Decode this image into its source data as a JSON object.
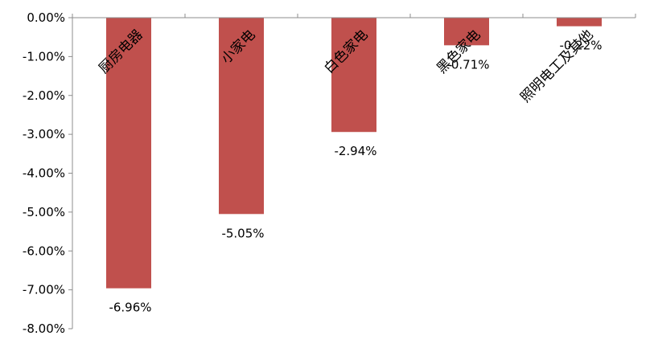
{
  "chart_data": {
    "type": "bar",
    "categories": [
      "厨房电器",
      "小家电",
      "白色家电",
      "黑色家电",
      "照明电工及其他"
    ],
    "values": [
      -6.96,
      -5.05,
      -2.94,
      -0.71,
      -0.22
    ],
    "data_labels": [
      "-6.96%",
      "-5.05%",
      "-2.94%",
      "-0.71%",
      "-0.22%"
    ],
    "y_ticks": [
      "0.00%",
      "-1.00%",
      "-2.00%",
      "-3.00%",
      "-4.00%",
      "-5.00%",
      "-6.00%",
      "-7.00%",
      "-8.00%"
    ],
    "ylim": [
      -8,
      0
    ],
    "title": "",
    "xlabel": "",
    "ylabel": "",
    "grid": false,
    "legend": "none",
    "colors": {
      "bar": "#c0504d",
      "axis": "#8c8c8c"
    }
  }
}
